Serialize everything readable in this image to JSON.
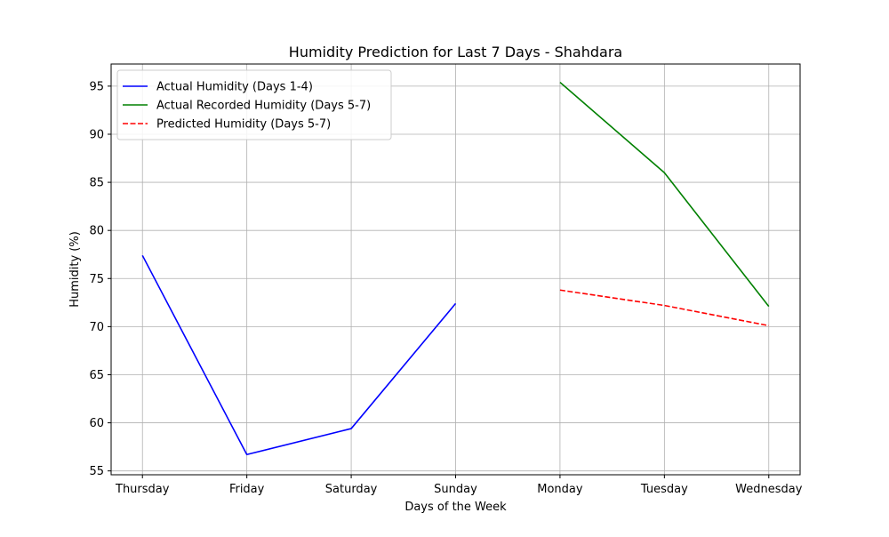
{
  "chart_data": {
    "type": "line",
    "title": "Humidity Prediction for Last 7 Days - Shahdara",
    "xlabel": "Days of the Week",
    "ylabel": "Humidity (%)",
    "categories": [
      "Thursday",
      "Friday",
      "Saturday",
      "Sunday",
      "Monday",
      "Tuesday",
      "Wednesday"
    ],
    "ylim": [
      54.6,
      97.3
    ],
    "yticks": [
      55,
      60,
      65,
      70,
      75,
      80,
      85,
      90,
      95
    ],
    "grid": true,
    "legend_position": "top-left",
    "series": [
      {
        "name": "Actual Humidity (Days 1-4)",
        "color": "#0000ff",
        "style": "solid",
        "x": [
          "Thursday",
          "Friday",
          "Saturday",
          "Sunday"
        ],
        "values": [
          77.4,
          56.7,
          59.4,
          72.4
        ]
      },
      {
        "name": "Actual Recorded Humidity (Days 5-7)",
        "color": "#008000",
        "style": "solid",
        "x": [
          "Monday",
          "Tuesday",
          "Wednesday"
        ],
        "values": [
          95.4,
          86.0,
          72.1
        ]
      },
      {
        "name": "Predicted Humidity (Days 5-7)",
        "color": "#ff0000",
        "style": "dashed",
        "x": [
          "Monday",
          "Tuesday",
          "Wednesday"
        ],
        "values": [
          73.8,
          72.2,
          70.1
        ]
      }
    ]
  }
}
